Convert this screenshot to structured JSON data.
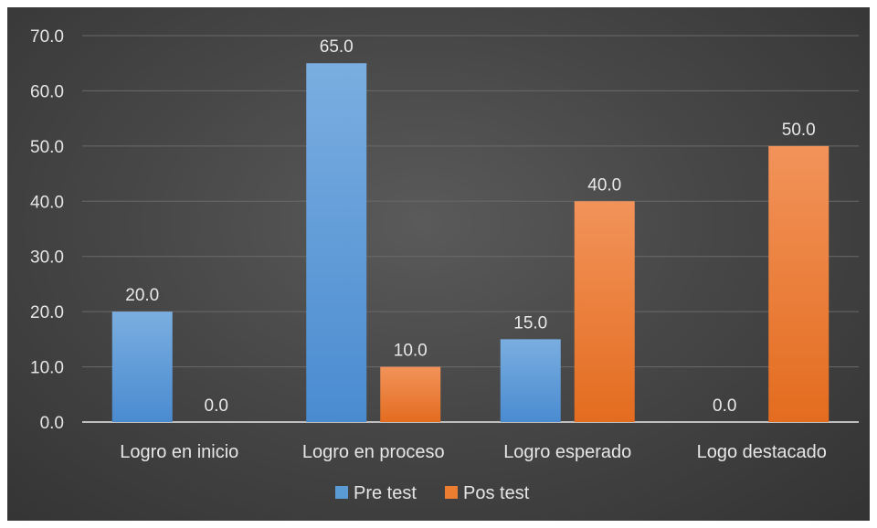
{
  "chart_data": {
    "type": "bar",
    "categories": [
      "Logro en inicio",
      "Logro en proceso",
      "Logro esperado",
      "Logo destacado"
    ],
    "series": [
      {
        "name": "Pre test",
        "values": [
          20.0,
          65.0,
          15.0,
          0.0
        ],
        "color": "#5b9bd5"
      },
      {
        "name": "Pos test",
        "values": [
          0.0,
          10.0,
          40.0,
          50.0
        ],
        "color": "#ed7d31"
      }
    ],
    "yticks": [
      "0.0",
      "10.0",
      "20.0",
      "30.0",
      "40.0",
      "50.0",
      "60.0",
      "70.0"
    ],
    "data_labels": [
      [
        "20.0",
        "65.0",
        "15.0",
        "0.0"
      ],
      [
        "0.0",
        "10.0",
        "40.0",
        "50.0"
      ]
    ],
    "ylim": [
      0,
      70
    ],
    "grid": true,
    "legend_position": "bottom",
    "background": "#474747",
    "gridline_color": "#6a6a6a",
    "axis_color": "#bfbfbf"
  }
}
